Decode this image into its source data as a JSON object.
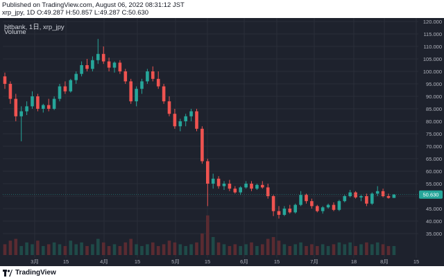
{
  "header": {
    "published": "Published on TradingView.com, August 06, 2022 08:31:12 JST",
    "ohlc": "xrp_jpy, 1D O:49.287 H:50.857 L:49.287 C:50.630"
  },
  "legend": {
    "exchange": "bitbank, 1日, xrp_jpy",
    "volume": "Volume"
  },
  "footer": {
    "brand": "TradingView"
  },
  "colors": {
    "background": "#1e222d",
    "grid": "#2a2e39",
    "up": "#26a69a",
    "down": "#ef5350",
    "up_volume": "#1f4a48",
    "down_volume": "#5a2b31",
    "last_price_tag": "#26a69a",
    "text": "#b2b5be"
  },
  "chart_data": {
    "type": "candlestick",
    "y_axis": {
      "ylim": [
        34,
        121
      ],
      "ticks": [
        "120.000",
        "115.000",
        "110.000",
        "105.000",
        "100.000",
        "95.000",
        "90.000",
        "85.000",
        "80.000",
        "75.000",
        "70.000",
        "65.000",
        "60.000",
        "55.000",
        "50.000",
        "45.000",
        "40.000",
        "35.000"
      ]
    },
    "x_axis": {
      "ticks": [
        "3月",
        "15",
        "4月",
        "15",
        "5月",
        "15",
        "6月",
        "15",
        "7月",
        "18",
        "8月",
        "15"
      ]
    },
    "last_price": "50.630",
    "candles": [
      [
        98.0,
        99.5,
        93.0,
        95.0
      ],
      [
        95.0,
        96.0,
        87.0,
        89.0
      ],
      [
        89.0,
        91.0,
        80.0,
        82.0
      ],
      [
        82.0,
        86.0,
        72.0,
        84.0
      ],
      [
        84.0,
        88.0,
        82.5,
        86.0
      ],
      [
        86.0,
        92.0,
        85.0,
        90.0
      ],
      [
        90.0,
        91.0,
        84.0,
        85.0
      ],
      [
        85.0,
        87.0,
        83.5,
        86.5
      ],
      [
        86.5,
        89.0,
        84.0,
        85.0
      ],
      [
        85.0,
        90.0,
        84.5,
        89.0
      ],
      [
        89.0,
        95.0,
        88.0,
        94.0
      ],
      [
        94.0,
        96.0,
        91.0,
        92.0
      ],
      [
        92.0,
        97.0,
        91.5,
        96.5
      ],
      [
        96.5,
        100.0,
        95.0,
        99.0
      ],
      [
        99.0,
        104.0,
        98.0,
        102.5
      ],
      [
        102.5,
        105.0,
        100.0,
        101.0
      ],
      [
        101.0,
        106.0,
        100.0,
        104.5
      ],
      [
        104.5,
        113.0,
        103.0,
        107.0
      ],
      [
        107.0,
        110.0,
        103.0,
        104.0
      ],
      [
        104.0,
        105.5,
        100.0,
        101.5
      ],
      [
        101.5,
        104.0,
        99.5,
        103.5
      ],
      [
        103.5,
        104.5,
        99.0,
        100.0
      ],
      [
        100.0,
        101.0,
        95.0,
        96.0
      ],
      [
        96.0,
        97.0,
        87.0,
        88.0
      ],
      [
        88.0,
        94.0,
        86.0,
        93.0
      ],
      [
        93.0,
        97.0,
        91.0,
        96.0
      ],
      [
        96.0,
        101.0,
        95.0,
        100.0
      ],
      [
        100.0,
        102.0,
        96.0,
        97.0
      ],
      [
        97.0,
        100.0,
        93.0,
        94.0
      ],
      [
        94.0,
        95.0,
        87.0,
        88.0
      ],
      [
        88.0,
        90.0,
        82.0,
        83.0
      ],
      [
        83.0,
        85.0,
        77.0,
        78.0
      ],
      [
        78.0,
        81.0,
        76.0,
        80.0
      ],
      [
        80.0,
        83.0,
        78.0,
        82.0
      ],
      [
        82.0,
        85.0,
        80.0,
        84.0
      ],
      [
        84.0,
        85.0,
        76.0,
        77.0
      ],
      [
        77.0,
        78.0,
        63.0,
        64.0
      ],
      [
        64.0,
        65.0,
        46.0,
        55.0
      ],
      [
        55.0,
        59.0,
        53.0,
        57.0
      ],
      [
        57.0,
        58.0,
        53.0,
        54.0
      ],
      [
        54.0,
        56.0,
        52.5,
        55.0
      ],
      [
        55.0,
        56.5,
        52.0,
        53.0
      ],
      [
        53.0,
        54.0,
        51.0,
        51.5
      ],
      [
        51.5,
        54.0,
        50.5,
        53.5
      ],
      [
        53.5,
        56.0,
        53.0,
        55.0
      ],
      [
        55.0,
        56.0,
        52.0,
        53.0
      ],
      [
        53.0,
        55.0,
        52.5,
        54.5
      ],
      [
        54.5,
        56.0,
        53.0,
        53.5
      ],
      [
        53.5,
        55.0,
        49.0,
        50.0
      ],
      [
        50.0,
        50.5,
        42.0,
        44.0
      ],
      [
        44.0,
        46.0,
        41.0,
        42.5
      ],
      [
        42.5,
        46.0,
        42.0,
        45.0
      ],
      [
        45.0,
        46.5,
        43.0,
        43.5
      ],
      [
        43.5,
        47.0,
        43.0,
        46.5
      ],
      [
        46.5,
        52.0,
        46.0,
        50.5
      ],
      [
        50.5,
        51.0,
        47.0,
        48.0
      ],
      [
        48.0,
        49.0,
        45.0,
        46.0
      ],
      [
        46.0,
        46.5,
        43.5,
        44.0
      ],
      [
        44.0,
        46.0,
        43.0,
        45.5
      ],
      [
        45.5,
        47.0,
        45.0,
        46.5
      ],
      [
        46.5,
        47.5,
        44.0,
        44.5
      ],
      [
        44.5,
        48.5,
        44.0,
        48.0
      ],
      [
        48.0,
        50.5,
        47.5,
        50.0
      ],
      [
        50.0,
        52.5,
        49.5,
        51.5
      ],
      [
        51.5,
        52.0,
        49.0,
        49.5
      ],
      [
        49.5,
        50.5,
        48.0,
        50.0
      ],
      [
        50.0,
        51.0,
        46.0,
        47.0
      ],
      [
        47.0,
        51.5,
        46.5,
        51.0
      ],
      [
        51.0,
        54.0,
        50.0,
        52.0
      ],
      [
        52.0,
        53.0,
        49.5,
        50.0
      ],
      [
        50.0,
        51.0,
        49.0,
        49.3
      ],
      [
        49.287,
        50.857,
        49.287,
        50.63
      ]
    ],
    "volumes": [
      6,
      8,
      9,
      5,
      7,
      6,
      8,
      5,
      6,
      7,
      6,
      5,
      8,
      6,
      7,
      5,
      6,
      9,
      7,
      5,
      6,
      5,
      7,
      9,
      6,
      5,
      6,
      7,
      5,
      6,
      8,
      7,
      6,
      5,
      6,
      7,
      12,
      22,
      10,
      7,
      6,
      5,
      6,
      5,
      6,
      7,
      5,
      6,
      9,
      10,
      8,
      6,
      5,
      6,
      7,
      5,
      6,
      5,
      6,
      5,
      6,
      7,
      6,
      7,
      5,
      6,
      7,
      6,
      7,
      6,
      5,
      5
    ]
  }
}
